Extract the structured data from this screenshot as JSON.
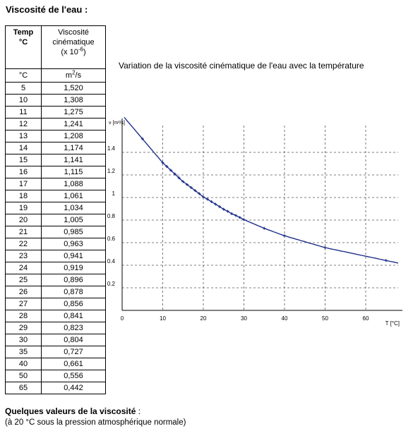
{
  "page": {
    "title": "Viscosité de l'eau :",
    "footer_title_bold": "Quelques valeurs de la viscosité",
    "footer_title_rest": " :",
    "footer_sub": "(à 20 °C sous la pression atmosphérique normale)"
  },
  "table": {
    "header_temp_1": "Temp",
    "header_temp_2": "°C",
    "header_visc_1": "Viscosité",
    "header_visc_2": "cinématique",
    "header_visc_3_pre": "(x 10",
    "header_visc_3_sup": "-6",
    "header_visc_3_post": ")",
    "unit_temp": "°C",
    "unit_visc_pre": "m",
    "unit_visc_sup": "2",
    "unit_visc_post": "/s",
    "rows": [
      {
        "t": "5",
        "v": "1,520"
      },
      {
        "t": "10",
        "v": "1,308"
      },
      {
        "t": "11",
        "v": "1,275"
      },
      {
        "t": "12",
        "v": "1,241"
      },
      {
        "t": "13",
        "v": "1,208"
      },
      {
        "t": "14",
        "v": "1,174"
      },
      {
        "t": "15",
        "v": "1,141"
      },
      {
        "t": "16",
        "v": "1,115"
      },
      {
        "t": "17",
        "v": "1,088"
      },
      {
        "t": "18",
        "v": "1,061"
      },
      {
        "t": "19",
        "v": "1,034"
      },
      {
        "t": "20",
        "v": "1,005"
      },
      {
        "t": "21",
        "v": "0,985"
      },
      {
        "t": "22",
        "v": "0,963"
      },
      {
        "t": "23",
        "v": "0,941"
      },
      {
        "t": "24",
        "v": "0,919"
      },
      {
        "t": "25",
        "v": "0,896"
      },
      {
        "t": "26",
        "v": "0,878"
      },
      {
        "t": "27",
        "v": "0,856"
      },
      {
        "t": "28",
        "v": "0,841"
      },
      {
        "t": "29",
        "v": "0,823"
      },
      {
        "t": "30",
        "v": "0,804"
      },
      {
        "t": "35",
        "v": "0,727"
      },
      {
        "t": "40",
        "v": "0,661"
      },
      {
        "t": "50",
        "v": "0,556"
      },
      {
        "t": "65",
        "v": "0,442"
      }
    ]
  },
  "chart_data": {
    "type": "line",
    "title": "Variation de la viscosité cinématique de l'eau avec la température",
    "xlabel": "T [°C]",
    "ylabel": "ν [m²/s]",
    "xlim": [
      0,
      68
    ],
    "ylim": [
      0,
      1.7
    ],
    "x_ticks": [
      0,
      10,
      20,
      30,
      40,
      50,
      60
    ],
    "x_tick_labels": [
      "0",
      "10",
      "20",
      "30",
      "40",
      "50",
      "60"
    ],
    "y_ticks": [
      0.2,
      0.4,
      0.6,
      0.8,
      1,
      1.2,
      1.4
    ],
    "y_tick_labels": [
      "0.2",
      "0.4",
      "0.6",
      "0.8",
      "1",
      "1.2",
      "1.4"
    ],
    "grid": true,
    "line_color": "#1f2f8a",
    "series": [
      {
        "x": [
          5,
          10,
          11,
          12,
          13,
          14,
          15,
          16,
          17,
          18,
          19,
          20,
          21,
          22,
          23,
          24,
          25,
          26,
          27,
          28,
          29,
          30,
          35,
          40,
          50,
          65
        ],
        "values": [
          1.52,
          1.308,
          1.275,
          1.241,
          1.208,
          1.174,
          1.141,
          1.115,
          1.088,
          1.061,
          1.034,
          1.005,
          0.985,
          0.963,
          0.941,
          0.919,
          0.896,
          0.878,
          0.856,
          0.841,
          0.823,
          0.804,
          0.727,
          0.661,
          0.556,
          0.442
        ]
      }
    ]
  }
}
